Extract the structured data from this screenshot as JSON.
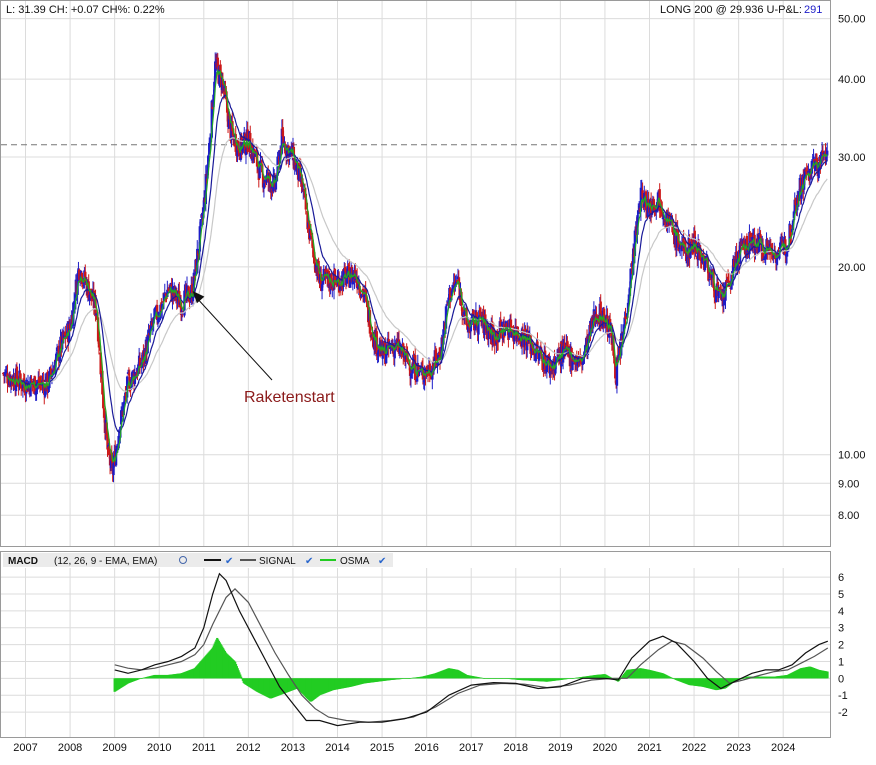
{
  "header": {
    "left": "L: 31.39 CH: +0.07 CH%: 0.22%",
    "right": "LONG 200 @ 29.936 U-P&L:",
    "pnl": "291"
  },
  "annotation": {
    "label": "Raketenstart",
    "date": 2010.75,
    "price": 18.3
  },
  "reference_line": {
    "price": 31.39
  },
  "macd_legend": {
    "name": "MACD",
    "params": "(12, 26, 9 - EMA, EMA)",
    "signal": "SIGNAL",
    "osma": "OSMA"
  },
  "colors": {
    "up": "#1c1cc8",
    "down": "#cc1818",
    "ma_fast": "#22aa22",
    "ma_mid": "#1a1a99",
    "ma_slow": "#c8c8c8",
    "macd": "#111111",
    "signal": "#555555",
    "osma": "#22cc22",
    "annotation": "#8b1a1a"
  },
  "chart_data": [
    {
      "type": "candlestick",
      "title": "",
      "y_scale": "log",
      "ylim": [
        7.3,
        52
      ],
      "xlim": [
        2006.45,
        2025.05
      ],
      "y_ticks": [
        {
          "v": 8,
          "label": "8.00"
        },
        {
          "v": 9,
          "label": "9.00"
        },
        {
          "v": 10,
          "label": "10.00"
        },
        {
          "v": 20,
          "label": "20.00"
        },
        {
          "v": 30,
          "label": "30.00"
        },
        {
          "v": 40,
          "label": "40.00"
        },
        {
          "v": 50,
          "label": "50.00"
        }
      ],
      "x_ticks": [
        {
          "v": 2007,
          "label": "2007"
        },
        {
          "v": 2008,
          "label": "2008"
        },
        {
          "v": 2009,
          "label": "2009"
        },
        {
          "v": 2010,
          "label": "2010"
        },
        {
          "v": 2011,
          "label": "2011"
        },
        {
          "v": 2012,
          "label": "2012"
        },
        {
          "v": 2013,
          "label": "2013"
        },
        {
          "v": 2014,
          "label": "2014"
        },
        {
          "v": 2015,
          "label": "2015"
        },
        {
          "v": 2016,
          "label": "2016"
        },
        {
          "v": 2017,
          "label": "2017"
        },
        {
          "v": 2018,
          "label": "2018"
        },
        {
          "v": 2019,
          "label": "2019"
        },
        {
          "v": 2020,
          "label": "2020"
        },
        {
          "v": 2021,
          "label": "2021"
        },
        {
          "v": 2022,
          "label": "2022"
        },
        {
          "v": 2023,
          "label": "2023"
        },
        {
          "v": 2024,
          "label": "2024"
        }
      ],
      "grid": true,
      "price_path": [
        [
          2006.5,
          13.5
        ],
        [
          2007.0,
          13.0
        ],
        [
          2007.5,
          13.0
        ],
        [
          2007.8,
          15.0
        ],
        [
          2008.0,
          16.0
        ],
        [
          2008.2,
          20.0
        ],
        [
          2008.4,
          18.5
        ],
        [
          2008.6,
          17.0
        ],
        [
          2008.75,
          12.0
        ],
        [
          2008.85,
          10.0
        ],
        [
          2008.95,
          9.4
        ],
        [
          2009.1,
          11.0
        ],
        [
          2009.3,
          13.0
        ],
        [
          2009.6,
          14.0
        ],
        [
          2009.9,
          16.5
        ],
        [
          2010.0,
          17.0
        ],
        [
          2010.2,
          18.5
        ],
        [
          2010.5,
          17.5
        ],
        [
          2010.75,
          18.3
        ],
        [
          2010.9,
          22.0
        ],
        [
          2011.0,
          25.0
        ],
        [
          2011.15,
          33.0
        ],
        [
          2011.25,
          42.0
        ],
        [
          2011.4,
          40.0
        ],
        [
          2011.6,
          33.0
        ],
        [
          2011.8,
          31.0
        ],
        [
          2012.0,
          32.0
        ],
        [
          2012.3,
          28.0
        ],
        [
          2012.6,
          27.0
        ],
        [
          2012.75,
          32.0
        ],
        [
          2013.0,
          30.0
        ],
        [
          2013.2,
          27.0
        ],
        [
          2013.4,
          22.0
        ],
        [
          2013.6,
          19.0
        ],
        [
          2014.0,
          19.0
        ],
        [
          2014.4,
          19.5
        ],
        [
          2014.6,
          18.0
        ],
        [
          2014.8,
          15.5
        ],
        [
          2015.0,
          14.5
        ],
        [
          2015.3,
          15.0
        ],
        [
          2015.6,
          14.0
        ],
        [
          2015.9,
          13.5
        ],
        [
          2016.1,
          13.8
        ],
        [
          2016.3,
          14.5
        ],
        [
          2016.5,
          18.0
        ],
        [
          2016.7,
          19.0
        ],
        [
          2016.9,
          16.0
        ],
        [
          2017.2,
          16.5
        ],
        [
          2017.5,
          15.5
        ],
        [
          2017.8,
          16.0
        ],
        [
          2018.2,
          15.5
        ],
        [
          2018.5,
          14.5
        ],
        [
          2018.8,
          13.8
        ],
        [
          2019.0,
          14.5
        ],
        [
          2019.2,
          14.5
        ],
        [
          2019.45,
          14.0
        ],
        [
          2019.6,
          15.0
        ],
        [
          2019.8,
          17.0
        ],
        [
          2020.0,
          16.5
        ],
        [
          2020.15,
          15.5
        ],
        [
          2020.25,
          13.5
        ],
        [
          2020.4,
          15.5
        ],
        [
          2020.6,
          20.0
        ],
        [
          2020.8,
          26.0
        ],
        [
          2021.0,
          25.0
        ],
        [
          2021.2,
          26.0
        ],
        [
          2021.5,
          23.0
        ],
        [
          2021.8,
          21.0
        ],
        [
          2022.0,
          22.0
        ],
        [
          2022.3,
          20.0
        ],
        [
          2022.6,
          17.5
        ],
        [
          2022.8,
          19.0
        ],
        [
          2023.0,
          21.0
        ],
        [
          2023.3,
          22.0
        ],
        [
          2023.6,
          21.5
        ],
        [
          2023.9,
          21.0
        ],
        [
          2024.1,
          22.0
        ],
        [
          2024.3,
          26.0
        ],
        [
          2024.5,
          28.0
        ],
        [
          2024.7,
          29.0
        ],
        [
          2024.85,
          29.5
        ],
        [
          2025.0,
          31.39
        ]
      ],
      "moving_averages": [
        {
          "key": "fast",
          "span_years": 0.1
        },
        {
          "key": "mid",
          "span_years": 0.35
        },
        {
          "key": "slow",
          "span_years": 0.9
        }
      ]
    },
    {
      "type": "macd",
      "ylim": [
        -3.3,
        6.6
      ],
      "y_ticks": [
        -2,
        -1,
        0,
        1,
        2,
        3,
        4,
        5,
        6
      ],
      "macd": [
        [
          2009.0,
          0.5
        ],
        [
          2009.3,
          0.3
        ],
        [
          2009.6,
          0.5
        ],
        [
          2009.9,
          0.8
        ],
        [
          2010.2,
          1.0
        ],
        [
          2010.5,
          1.3
        ],
        [
          2010.8,
          1.8
        ],
        [
          2011.0,
          3.0
        ],
        [
          2011.2,
          5.0
        ],
        [
          2011.35,
          6.2
        ],
        [
          2011.5,
          5.8
        ],
        [
          2011.8,
          4.0
        ],
        [
          2012.1,
          2.5
        ],
        [
          2012.4,
          1.0
        ],
        [
          2012.7,
          -0.5
        ],
        [
          2013.0,
          -1.5
        ],
        [
          2013.3,
          -2.5
        ],
        [
          2013.6,
          -2.5
        ],
        [
          2014.0,
          -2.8
        ],
        [
          2014.5,
          -2.6
        ],
        [
          2015.0,
          -2.6
        ],
        [
          2015.5,
          -2.4
        ],
        [
          2016.0,
          -2.0
        ],
        [
          2016.5,
          -1.0
        ],
        [
          2017.0,
          -0.4
        ],
        [
          2017.5,
          -0.25
        ],
        [
          2018.0,
          -0.3
        ],
        [
          2018.5,
          -0.6
        ],
        [
          2019.0,
          -0.5
        ],
        [
          2019.5,
          0.0
        ],
        [
          2020.0,
          0.0
        ],
        [
          2020.3,
          -0.1
        ],
        [
          2020.6,
          1.2
        ],
        [
          2021.0,
          2.2
        ],
        [
          2021.3,
          2.5
        ],
        [
          2021.6,
          2.1
        ],
        [
          2022.0,
          1.0
        ],
        [
          2022.3,
          0.0
        ],
        [
          2022.6,
          -0.6
        ],
        [
          2022.9,
          -0.2
        ],
        [
          2023.3,
          0.3
        ],
        [
          2023.6,
          0.5
        ],
        [
          2023.9,
          0.5
        ],
        [
          2024.2,
          0.8
        ],
        [
          2024.5,
          1.5
        ],
        [
          2024.8,
          2.0
        ],
        [
          2025.0,
          2.2
        ]
      ],
      "signal": [
        [
          2009.0,
          0.8
        ],
        [
          2009.3,
          0.6
        ],
        [
          2009.6,
          0.5
        ],
        [
          2009.9,
          0.6
        ],
        [
          2010.2,
          0.8
        ],
        [
          2010.5,
          1.0
        ],
        [
          2010.8,
          1.4
        ],
        [
          2011.0,
          2.0
        ],
        [
          2011.2,
          3.2
        ],
        [
          2011.5,
          4.8
        ],
        [
          2011.7,
          5.3
        ],
        [
          2012.0,
          4.5
        ],
        [
          2012.3,
          3.0
        ],
        [
          2012.6,
          1.5
        ],
        [
          2012.9,
          0.2
        ],
        [
          2013.2,
          -1.0
        ],
        [
          2013.5,
          -1.8
        ],
        [
          2013.8,
          -2.3
        ],
        [
          2014.2,
          -2.5
        ],
        [
          2014.7,
          -2.6
        ],
        [
          2015.2,
          -2.5
        ],
        [
          2015.7,
          -2.3
        ],
        [
          2016.2,
          -1.7
        ],
        [
          2016.7,
          -0.9
        ],
        [
          2017.2,
          -0.4
        ],
        [
          2017.7,
          -0.3
        ],
        [
          2018.2,
          -0.35
        ],
        [
          2018.7,
          -0.55
        ],
        [
          2019.2,
          -0.4
        ],
        [
          2019.7,
          -0.1
        ],
        [
          2020.2,
          0.0
        ],
        [
          2020.5,
          0.0
        ],
        [
          2020.8,
          0.8
        ],
        [
          2021.2,
          1.7
        ],
        [
          2021.5,
          2.2
        ],
        [
          2021.8,
          2.0
        ],
        [
          2022.2,
          1.2
        ],
        [
          2022.5,
          0.4
        ],
        [
          2022.8,
          -0.3
        ],
        [
          2023.1,
          -0.1
        ],
        [
          2023.5,
          0.2
        ],
        [
          2023.8,
          0.4
        ],
        [
          2024.1,
          0.5
        ],
        [
          2024.4,
          0.9
        ],
        [
          2024.7,
          1.3
        ],
        [
          2025.0,
          1.8
        ]
      ],
      "osma": [
        [
          2009.0,
          -0.8
        ],
        [
          2009.3,
          -0.3
        ],
        [
          2009.6,
          0.0
        ],
        [
          2009.9,
          0.2
        ],
        [
          2010.2,
          0.2
        ],
        [
          2010.5,
          0.3
        ],
        [
          2010.8,
          0.6
        ],
        [
          2011.0,
          1.2
        ],
        [
          2011.2,
          1.8
        ],
        [
          2011.3,
          2.4
        ],
        [
          2011.5,
          1.5
        ],
        [
          2011.7,
          1.0
        ],
        [
          2011.9,
          -0.3
        ],
        [
          2012.2,
          -0.8
        ],
        [
          2012.5,
          -1.2
        ],
        [
          2012.8,
          -0.9
        ],
        [
          2013.1,
          -0.6
        ],
        [
          2013.4,
          -1.4
        ],
        [
          2013.6,
          -1.0
        ],
        [
          2013.9,
          -0.7
        ],
        [
          2014.3,
          -0.5
        ],
        [
          2014.6,
          -0.3
        ],
        [
          2014.9,
          -0.2
        ],
        [
          2015.2,
          -0.1
        ],
        [
          2015.6,
          0.0
        ],
        [
          2015.9,
          0.1
        ],
        [
          2016.2,
          0.3
        ],
        [
          2016.5,
          0.6
        ],
        [
          2016.7,
          0.5
        ],
        [
          2016.9,
          0.2
        ],
        [
          2017.3,
          0.0
        ],
        [
          2017.7,
          0.0
        ],
        [
          2018.1,
          -0.1
        ],
        [
          2018.4,
          -0.15
        ],
        [
          2018.7,
          -0.2
        ],
        [
          2019.0,
          -0.1
        ],
        [
          2019.4,
          0.05
        ],
        [
          2019.8,
          0.2
        ],
        [
          2020.0,
          0.25
        ],
        [
          2020.3,
          -0.2
        ],
        [
          2020.5,
          0.5
        ],
        [
          2020.8,
          0.6
        ],
        [
          2021.0,
          0.5
        ],
        [
          2021.3,
          0.3
        ],
        [
          2021.6,
          -0.1
        ],
        [
          2021.9,
          -0.4
        ],
        [
          2022.2,
          -0.5
        ],
        [
          2022.5,
          -0.7
        ],
        [
          2022.7,
          -0.6
        ],
        [
          2022.9,
          -0.2
        ],
        [
          2023.2,
          0.1
        ],
        [
          2023.5,
          0.1
        ],
        [
          2023.8,
          0.1
        ],
        [
          2024.1,
          0.2
        ],
        [
          2024.4,
          0.6
        ],
        [
          2024.6,
          0.7
        ],
        [
          2024.8,
          0.5
        ],
        [
          2025.0,
          0.4
        ]
      ]
    }
  ]
}
